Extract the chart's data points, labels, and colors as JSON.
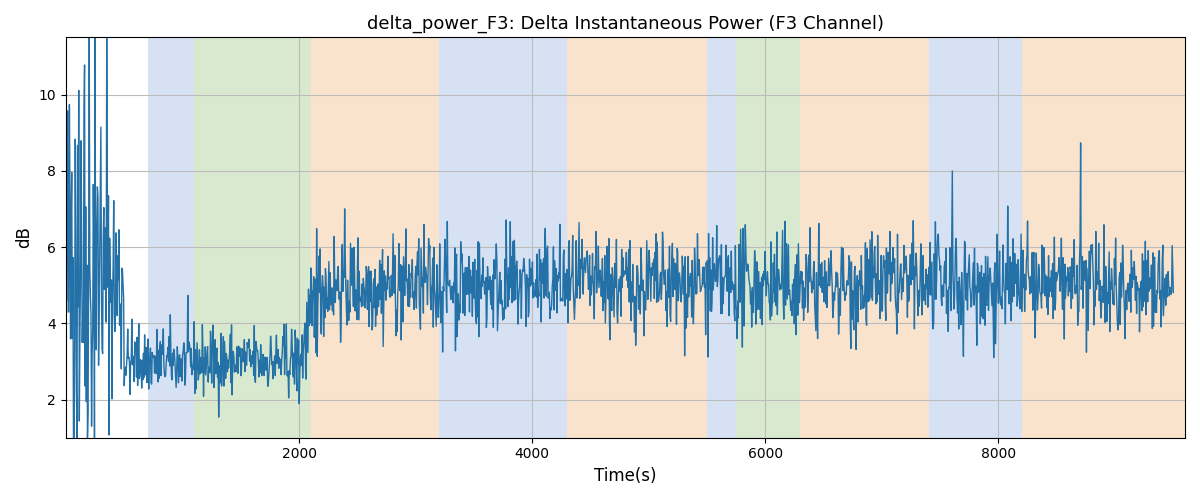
{
  "title": "delta_power_F3: Delta Instantaneous Power (F3 Channel)",
  "xlabel": "Time(s)",
  "ylabel": "dB",
  "xlim": [
    0,
    9600
  ],
  "ylim": [
    1.0,
    11.5
  ],
  "yticks": [
    2,
    4,
    6,
    8,
    10
  ],
  "xticks": [
    2000,
    4000,
    6000,
    8000
  ],
  "line_color": "#2471a8",
  "line_width": 1.0,
  "grid_color": "#bbbbbb",
  "bg_color": "#ffffff",
  "colored_regions": [
    {
      "xmin": 700,
      "xmax": 1100,
      "color": "#aec6e8",
      "alpha": 0.5
    },
    {
      "xmin": 1100,
      "xmax": 2100,
      "color": "#b5d5a0",
      "alpha": 0.5
    },
    {
      "xmin": 2100,
      "xmax": 3200,
      "color": "#f5c89a",
      "alpha": 0.5
    },
    {
      "xmin": 3200,
      "xmax": 4300,
      "color": "#aec6e8",
      "alpha": 0.5
    },
    {
      "xmin": 4300,
      "xmax": 5500,
      "color": "#f5c89a",
      "alpha": 0.5
    },
    {
      "xmin": 5500,
      "xmax": 5750,
      "color": "#aec6e8",
      "alpha": 0.5
    },
    {
      "xmin": 5750,
      "xmax": 6300,
      "color": "#b5d5a0",
      "alpha": 0.5
    },
    {
      "xmin": 6300,
      "xmax": 7400,
      "color": "#f5c89a",
      "alpha": 0.5
    },
    {
      "xmin": 7400,
      "xmax": 8200,
      "color": "#aec6e8",
      "alpha": 0.5
    },
    {
      "xmin": 8200,
      "xmax": 9600,
      "color": "#f5c89a",
      "alpha": 0.5
    }
  ],
  "seed": 42,
  "n_points": 1900
}
